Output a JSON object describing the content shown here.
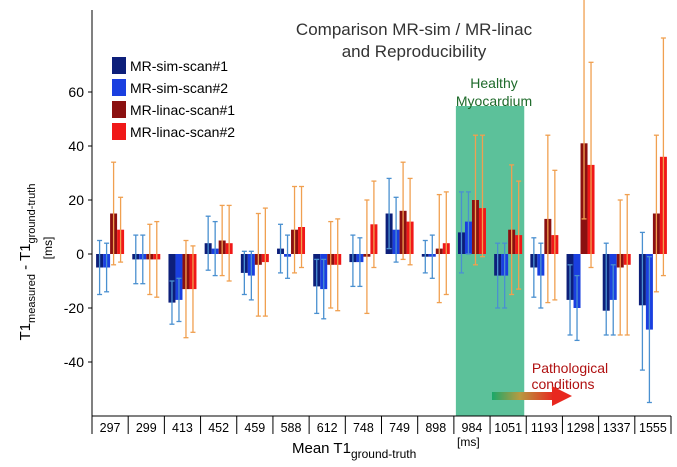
{
  "chart_data": {
    "type": "bar",
    "title_line1": "Comparison MR-sim / MR-linac",
    "title_line2": "and Reproducibility",
    "xlabel_main": "Mean T1",
    "xlabel_sub": "ground-truth",
    "xlabel_unit": "[ms]",
    "ylabel_main": "T1",
    "ylabel_sub1": "measured",
    "ylabel_mid": " - T1",
    "ylabel_sub2": "ground-truth",
    "ylabel_unit": "[ms]",
    "ylim": [
      -60,
      100
    ],
    "yticks": [
      -40,
      -20,
      0,
      20,
      40,
      60
    ],
    "ytick_labels": [
      "-40",
      "-20",
      "0",
      "20",
      "40",
      "60"
    ],
    "categories": [
      "297",
      "299",
      "413",
      "452",
      "459",
      "588",
      "612",
      "748",
      "749",
      "898",
      "984",
      "1051",
      "1193",
      "1298",
      "1337",
      "1555"
    ],
    "legend_position": "top-left",
    "grid": false,
    "colors": {
      "sim1": "#0d1f7a",
      "sim2": "#1a3fe0",
      "linac1": "#8b1010",
      "linac2": "#f01818",
      "err_sim": "#4a90d0",
      "err_linac": "#f0a050",
      "healthy_band": "#5cc19a"
    },
    "series": [
      {
        "name": "MR-sim-scan#1",
        "values": [
          -5,
          -2,
          -18,
          4,
          -7,
          2,
          -12,
          -3,
          15,
          -1,
          8,
          -8,
          -5,
          -17,
          -21,
          -19
        ],
        "err_low": [
          10,
          9,
          8,
          10,
          8,
          9,
          10,
          9,
          13,
          6,
          15,
          12,
          11,
          13,
          9,
          24
        ],
        "err_high": [
          10,
          9,
          8,
          10,
          8,
          9,
          10,
          10,
          13,
          6,
          15,
          12,
          11,
          13,
          25,
          27
        ]
      },
      {
        "name": "MR-sim-scan#2",
        "values": [
          -5,
          -2,
          -17,
          2,
          -8,
          -1,
          -13,
          -3,
          9,
          -1,
          12,
          -8,
          -8,
          -20,
          -17,
          -28
        ],
        "err_low": [
          9,
          9,
          8,
          10,
          9,
          8,
          11,
          9,
          12,
          8,
          12,
          12,
          12,
          12,
          13,
          27
        ],
        "err_high": [
          9,
          9,
          8,
          10,
          9,
          8,
          11,
          9,
          12,
          8,
          11,
          12,
          12,
          12,
          13,
          27
        ]
      },
      {
        "name": "MR-linac-scan#1",
        "values": [
          15,
          -2,
          -13,
          5,
          -4,
          9,
          -4,
          -1,
          16,
          2,
          20,
          9,
          13,
          41,
          -5,
          15
        ],
        "err_low": [
          19,
          13,
          18,
          13,
          19,
          16,
          16,
          21,
          18,
          20,
          24,
          24,
          31,
          28,
          25,
          29
        ],
        "err_high": [
          19,
          13,
          18,
          13,
          19,
          16,
          16,
          21,
          18,
          20,
          24,
          24,
          31,
          64,
          25,
          29
        ]
      },
      {
        "name": "MR-linac-scan#2",
        "values": [
          9,
          -2,
          -13,
          4,
          -3,
          10,
          -4,
          11,
          12,
          4,
          17,
          7,
          7,
          33,
          -4,
          36
        ],
        "err_low": [
          12,
          14,
          16,
          14,
          20,
          15,
          17,
          16,
          16,
          19,
          18,
          20,
          24,
          38,
          26,
          44
        ],
        "err_high": [
          12,
          14,
          16,
          14,
          20,
          15,
          17,
          16,
          16,
          19,
          27,
          20,
          24,
          38,
          26,
          44
        ]
      }
    ],
    "annotations": {
      "healthy_line1": "Healthy",
      "healthy_line2": "Myocardium",
      "healthy_band_categories": [
        "984",
        "1051"
      ],
      "patho_line1": "Pathological",
      "patho_line2": "conditions"
    }
  }
}
